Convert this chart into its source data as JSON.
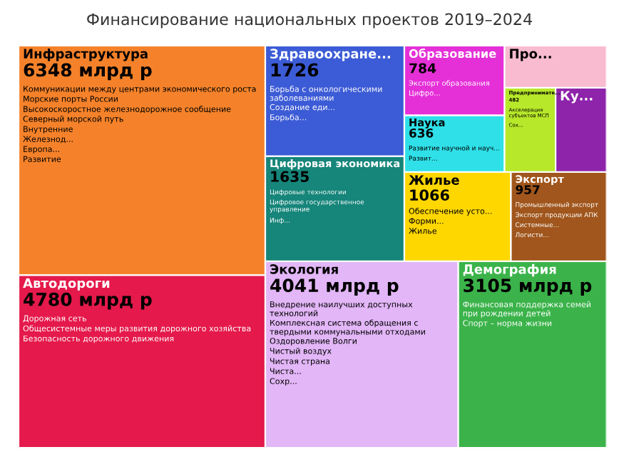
{
  "chart_data": {
    "type": "other",
    "title": "Финансирование национальных проектов 2019–2024",
    "categories": [
      "Инфраструктура",
      "Автодороги",
      "Экология",
      "Демография",
      "Здравоохране...",
      "Цифровая экономика",
      "Жилье",
      "Экспорт",
      "Образование",
      "Наука",
      "Предпринимате...",
      "Ку...",
      "Про..."
    ],
    "values": [
      6348,
      4780,
      4041,
      3105,
      1726,
      1635,
      1066,
      957,
      784,
      636,
      482,
      null,
      null
    ],
    "value_labels": [
      "6348 млрд р",
      "4780 млрд р",
      "4041 млрд р",
      "3105 млрд р",
      "1726",
      "1635",
      "1066",
      "957",
      "784",
      "636",
      "482",
      null,
      null
    ],
    "colors": [
      "#f5822a",
      "#e5194b",
      "#e2b6f7",
      "#3bb34a",
      "#3c5bd6",
      "#16857a",
      "#ffd700",
      "#a0561c",
      "#e530d8",
      "#2fe0e8",
      "#b8e82a",
      "#8e24aa",
      "#f8bbd0"
    ],
    "annotations": [
      {
        "text": "Коммуникации между центрами экономического роста",
        "x": "Инфраструктура"
      },
      {
        "text": "Морские порты России",
        "x": "Инфраструктура"
      },
      {
        "text": "Высокоскоростное железнодорожное сообщение",
        "x": "Инфраструктура"
      },
      {
        "text": "Северный морской путь",
        "x": "Инфраструктура"
      },
      {
        "text": "Внутренние",
        "x": "Инфраструктура"
      },
      {
        "text": "Железнод...",
        "x": "Инфраструктура"
      },
      {
        "text": "Европа...",
        "x": "Инфраструктура"
      },
      {
        "text": "Развитие",
        "x": "Инфраструктура"
      },
      {
        "text": "Дорожная сеть",
        "x": "Автодороги"
      },
      {
        "text": "Общесистемные меры развития дорожного хозяйства",
        "x": "Автодороги"
      },
      {
        "text": "Безопасность дорожного движения",
        "x": "Автодороги"
      },
      {
        "text": "Внедрение наилучших доступных технологий",
        "x": "Экология"
      },
      {
        "text": "Комплексная система обращения с твердыми коммунальными отходами",
        "x": "Экология"
      },
      {
        "text": "Оздоровление Волги",
        "x": "Экология"
      },
      {
        "text": "Чистый воздух",
        "x": "Экология"
      },
      {
        "text": "Чистая страна",
        "x": "Экология"
      },
      {
        "text": "Чиста...",
        "x": "Экология"
      },
      {
        "text": "Сохр...",
        "x": "Экология"
      },
      {
        "text": "Финансовая поддержка семей при рождении детей",
        "x": "Демография"
      },
      {
        "text": "Спорт – норма жизни",
        "x": "Демография"
      },
      {
        "text": "Борьба с онкологическими заболеваниями",
        "x": "Здравоохране..."
      },
      {
        "text": "Создание еди...",
        "x": "Здравоохране..."
      },
      {
        "text": "Борьба...",
        "x": "Здравоохране..."
      },
      {
        "text": "Цифровые технологии",
        "x": "Цифровая экономика"
      },
      {
        "text": "Цифровое государственное управление",
        "x": "Цифровая экономика"
      },
      {
        "text": "Инф...",
        "x": "Цифровая экономика"
      },
      {
        "text": "Обеспечение усто...",
        "x": "Жилье"
      },
      {
        "text": "Форми...",
        "x": "Жилье"
      },
      {
        "text": "Жилье",
        "x": "Жилье"
      },
      {
        "text": "Промышленный экспорт",
        "x": "Экспорт"
      },
      {
        "text": "Экспорт продукции АПК",
        "x": "Экспорт"
      },
      {
        "text": "Системные...",
        "x": "Экспорт"
      },
      {
        "text": "Логисти...",
        "x": "Экспорт"
      },
      {
        "text": "Экспорт образования",
        "x": "Образование"
      },
      {
        "text": "Цифро...",
        "x": "Образование"
      },
      {
        "text": "Развитие научной и науч...",
        "x": "Наука"
      },
      {
        "text": "Развит...",
        "x": "Наука"
      },
      {
        "text": "Акселерация субъектов МСП",
        "x": "Предпринимате..."
      },
      {
        "text": "Сох...",
        "x": "Предпринимате..."
      }
    ]
  }
}
